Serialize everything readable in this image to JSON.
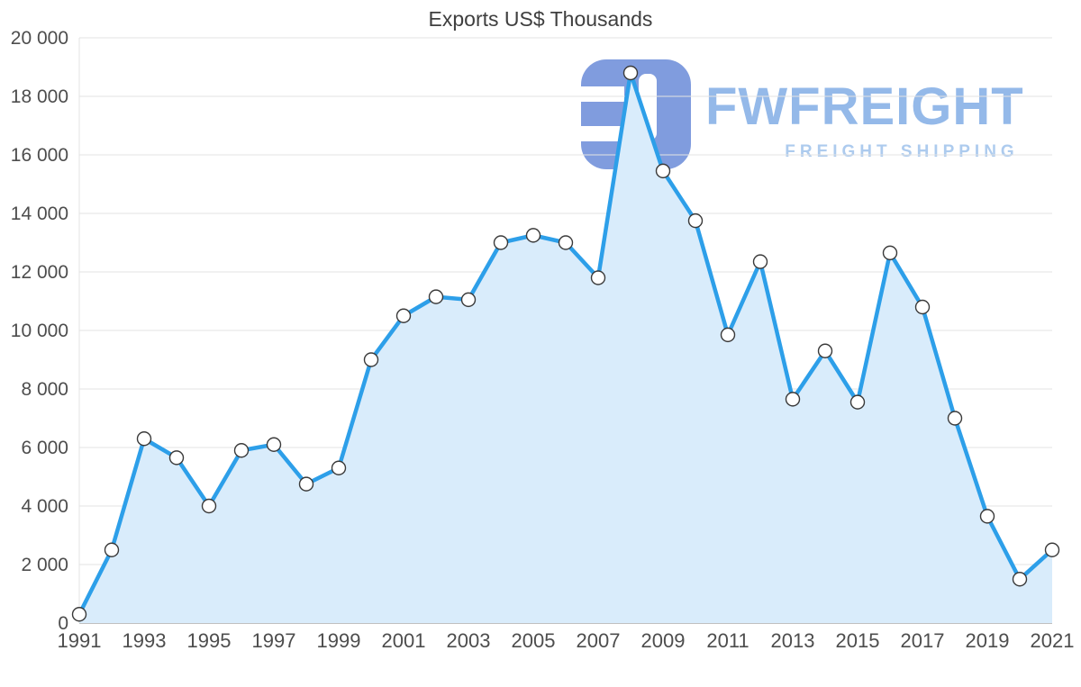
{
  "chart_data": {
    "type": "area",
    "title": "Exports US$ Thousands",
    "categories": [
      1991,
      1992,
      1993,
      1994,
      1995,
      1996,
      1997,
      1998,
      1999,
      2000,
      2001,
      2002,
      2003,
      2004,
      2005,
      2006,
      2007,
      2008,
      2009,
      2010,
      2011,
      2012,
      2013,
      2014,
      2015,
      2016,
      2017,
      2018,
      2019,
      2020,
      2021
    ],
    "values": [
      300,
      2500,
      6300,
      5650,
      4000,
      5900,
      6100,
      4750,
      5300,
      9000,
      10500,
      11150,
      11050,
      13000,
      13250,
      13000,
      11800,
      18800,
      15450,
      13750,
      9850,
      12350,
      7650,
      9300,
      7550,
      12650,
      10800,
      7000,
      3650,
      1500,
      2500
    ],
    "ylim": [
      0,
      20000
    ],
    "y_tick_step": 2000,
    "y_tick_labels": [
      "0",
      "2 000",
      "4 000",
      "6 000",
      "8 000",
      "10 000",
      "12 000",
      "14 000",
      "16 000",
      "18 000",
      "20 000"
    ],
    "x_tick_labels": [
      1991,
      1993,
      1995,
      1997,
      1999,
      2001,
      2003,
      2005,
      2007,
      2009,
      2011,
      2013,
      2015,
      2017,
      2019,
      2021
    ],
    "grid": true,
    "legend_position": "none",
    "colors": {
      "line": "#2D9FE9",
      "area": "#D9ECFB",
      "marker_fill": "#FFFFFF",
      "marker_stroke": "#3A3A3A",
      "grid": "#E3E3E3",
      "axis": "#ABABAB",
      "tick_text": "#4D4D4D",
      "title_text": "#3F3F3F"
    }
  },
  "watermark": {
    "brand": "FWFREIGHT",
    "tagline": "FREIGHT SHIPPING",
    "logo_color": "#7A97DD"
  }
}
